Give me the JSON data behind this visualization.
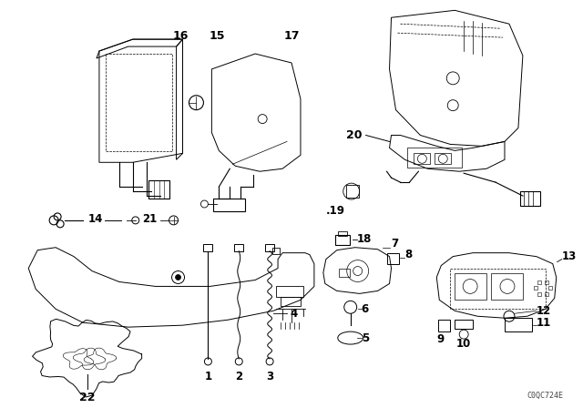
{
  "bg_color": "#ffffff",
  "line_color": "#000000",
  "fig_width": 6.4,
  "fig_height": 4.48,
  "dpi": 100,
  "watermark_text": "C0QC724E",
  "watermark_fontsize": 6.0
}
